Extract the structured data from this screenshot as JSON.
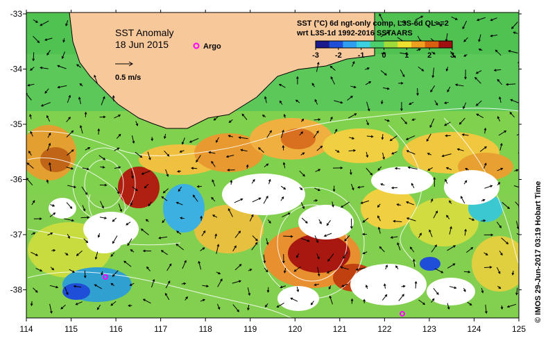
{
  "map": {
    "title": "SST Anomaly",
    "date": "18 Jun 2015",
    "argo_label": "Argo",
    "scale_label": "0.5 m/s",
    "header_line1": "SST (°C) 6d ngt-only comp, L3S-6d QL>=2",
    "header_line2": "wrt L3S-1d 1992-2016 SSTAARS",
    "credit": "© IMOS 29-Jun-2017 03:19 Hobart Time",
    "colorbar_ticks": [
      "-3",
      "-2",
      "-1",
      "0",
      "1",
      "2",
      "3"
    ],
    "colorbar_colors": [
      "#1a1a8c",
      "#1f4fd8",
      "#2fa0f0",
      "#3cd1e0",
      "#4ccf6a",
      "#9fdc3a",
      "#f0e030",
      "#f0a020",
      "#d86010",
      "#a01010"
    ],
    "x_ticks": [
      "114",
      "115",
      "116",
      "117",
      "118",
      "119",
      "120",
      "121",
      "122",
      "123",
      "124",
      "125"
    ],
    "y_ticks": [
      "-33",
      "-34",
      "-35",
      "-36",
      "-37",
      "-38"
    ],
    "land_color": "#f7c89a",
    "argo_color": "#ff00ff"
  }
}
